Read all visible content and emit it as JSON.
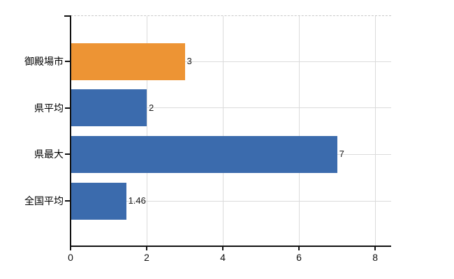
{
  "chart_data": {
    "type": "bar",
    "orientation": "horizontal",
    "title": "",
    "xlabel": "",
    "ylabel": "",
    "categories": [
      "御殿場市",
      "県平均",
      "県最大",
      "全国平均"
    ],
    "series": [
      {
        "name": "values",
        "values": [
          3,
          2,
          7,
          1.46
        ]
      }
    ],
    "value_labels": [
      "3",
      "2",
      "7",
      "1.46"
    ],
    "bar_colors": [
      "#ED9434",
      "#3B6BAD",
      "#3B6BAD",
      "#3B6BAD"
    ],
    "xlim": [
      0,
      8.42
    ],
    "xticks": [
      0,
      2,
      4,
      6,
      8
    ],
    "xtick_labels": [
      "0",
      "2",
      "4",
      "6",
      "8"
    ],
    "grid": true,
    "legend": false,
    "colors": {
      "accent_orange": "#ED9434",
      "accent_blue": "#3B6BAD",
      "axis": "#111111",
      "gridline": "#DBDBDB",
      "plot_top_border": "#C9C9C9",
      "category_text": "#000000",
      "value_text": "#1A1A1A",
      "background": "#FFFFFF"
    }
  }
}
